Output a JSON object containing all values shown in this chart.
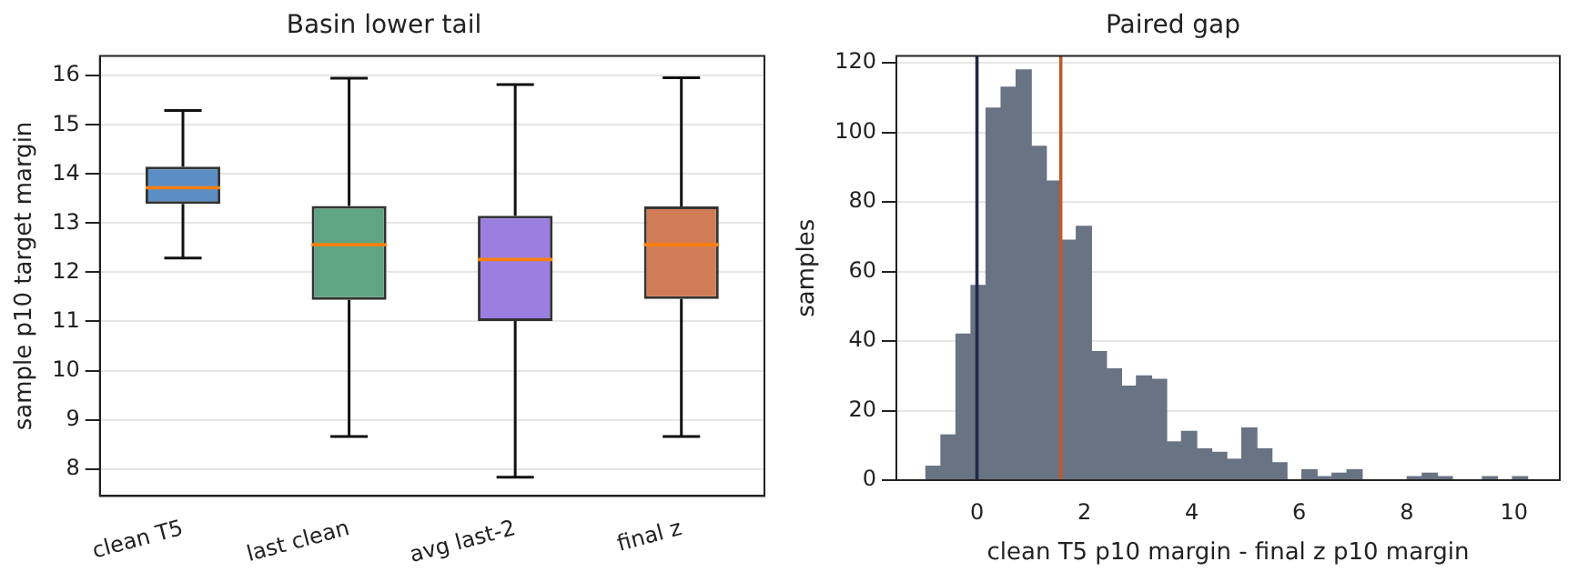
{
  "chart_data": [
    {
      "type": "box",
      "title": "Basin lower tail",
      "ylabel": "sample p10 target margin",
      "categories": [
        "clean T5",
        "last clean",
        "avg last-2",
        "final z"
      ],
      "colors": [
        "#5b8ec4",
        "#5fa583",
        "#9b7fe0",
        "#d07c56"
      ],
      "boxes": [
        {
          "low": 12.29,
          "q1": 13.39,
          "median": 13.72,
          "q3": 14.15,
          "high": 15.29
        },
        {
          "low": 8.66,
          "q1": 11.44,
          "median": 12.56,
          "q3": 13.35,
          "high": 15.95
        },
        {
          "low": 7.83,
          "q1": 11.01,
          "median": 12.26,
          "q3": 13.15,
          "high": 15.82
        },
        {
          "low": 8.66,
          "q1": 11.46,
          "median": 12.56,
          "q3": 13.34,
          "high": 15.96
        }
      ],
      "ylim": [
        7.45,
        16.4
      ],
      "yticks": [
        8,
        9,
        10,
        11,
        12,
        13,
        14,
        15,
        16
      ],
      "grid": "y",
      "legend": false
    },
    {
      "type": "histogram",
      "title": "Paired gap",
      "xlabel": "clean T5 p10 margin - final z p10 margin",
      "ylabel": "samples",
      "color": "#687384",
      "bins": [
        -0.95,
        -0.67,
        -0.39,
        -0.11,
        0.17,
        0.45,
        0.73,
        1.01,
        1.29,
        1.57,
        1.85,
        2.13,
        2.41,
        2.69,
        2.97,
        3.25,
        3.53,
        3.81,
        4.09,
        4.37,
        4.65,
        4.93,
        5.21,
        5.49,
        5.77,
        6.05,
        6.33,
        6.61,
        6.89,
        7.17,
        7.45,
        7.73,
        8.01,
        8.29,
        8.57,
        8.85,
        9.13,
        9.41,
        9.69,
        9.97,
        10.25
      ],
      "values": [
        4,
        13,
        42,
        56,
        107,
        113,
        118,
        96,
        86,
        69,
        73,
        37,
        32,
        27,
        30,
        29,
        11,
        14,
        9,
        8,
        6,
        15,
        9,
        5,
        0,
        3,
        1,
        2,
        3,
        0,
        0,
        0,
        1,
        2,
        1,
        0,
        0,
        1,
        0,
        1
      ],
      "xlim": [
        -1.5,
        10.85
      ],
      "xticks": [
        0,
        2,
        4,
        6,
        8,
        10
      ],
      "ylim": [
        0,
        122
      ],
      "yticks": [
        0,
        20,
        40,
        60,
        80,
        100,
        120
      ],
      "grid": "y",
      "legend": false,
      "ref_lines": [
        {
          "axis": "x",
          "value": 0,
          "color": "#1f2a44"
        },
        {
          "axis": "x",
          "value": 1.56,
          "color": "#c0582a"
        }
      ]
    }
  ]
}
